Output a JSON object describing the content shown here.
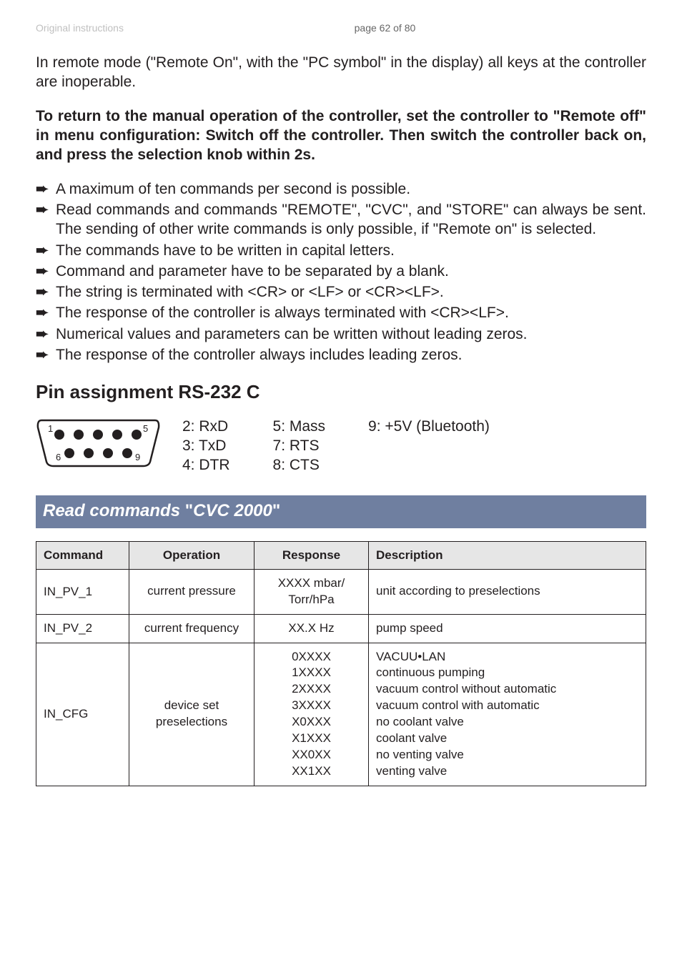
{
  "header": {
    "left": "Original instructions",
    "center": "page 62 of 80"
  },
  "intro": "In remote mode (\"Remote On\", with the \"PC symbol\" in the display) all keys at the controller are inoperable.",
  "bold_para": "To return to the manual operation of the controller, set the controller to \"Remote off\" in menu configuration:  Switch off the controller. Then switch the controller back on, and press the selection knob within 2s.",
  "bullets": [
    "A maximum of ten commands per second is possible.",
    "Read commands and commands \"REMOTE\", \"CVC\", and \"STORE\" can always be sent. The sending of other write commands is only possible, if \"Remote on\" is selected.",
    "The commands have to be written in capital letters.",
    "Command and parameter have to be separated by a blank.",
    "The string is terminated with <CR> or <LF> or <CR><LF>.",
    "The response of the controller is always terminated with <CR><LF>.",
    "Numerical values and parameters can be written without leading zeros.",
    "The response of the controller always includes leading zeros."
  ],
  "pin_section_title": "Pin assignment RS-232 C",
  "connector": {
    "pin_labels": {
      "1": "1",
      "5": "5",
      "6": "6",
      "9": "9"
    },
    "dot_color": "#231f20",
    "outline_color": "#231f20",
    "background": "#ffffff"
  },
  "pins": {
    "col1": [
      "2: RxD",
      "3: TxD",
      "4: DTR"
    ],
    "col2": [
      "5: Mass",
      "7: RTS",
      "8: CTS"
    ],
    "col3": [
      "9: +5V (Bluetooth)"
    ]
  },
  "cvc_bar": {
    "text1": "Read commands ",
    "quote1": "\"",
    "text2": "CVC 2000",
    "quote2": "\""
  },
  "table": {
    "headers": [
      "Command",
      "Operation",
      "Response",
      "Description"
    ],
    "header_background": "#e6e6e6",
    "border_color": "#231f20",
    "rows": [
      {
        "command": "IN_PV_1",
        "operation": "current pressure",
        "response": "XXXX mbar/\nTorr/hPa",
        "description": "unit according to preselections"
      },
      {
        "command": "IN_PV_2",
        "operation": "current frequency",
        "response": "XX.X Hz",
        "description": "pump speed"
      },
      {
        "command": "IN_CFG",
        "operation": "device set\npreselections",
        "response": "0XXXX\n1XXXX\n2XXXX\n3XXXX\nX0XXX\nX1XXX\nXX0XX\nXX1XX",
        "description": "VACUU•LAN\ncontinuous pumping\nvacuum control without automatic\nvacuum control with automatic\nno coolant valve\ncoolant valve\nno venting valve\nventing valve"
      }
    ]
  }
}
